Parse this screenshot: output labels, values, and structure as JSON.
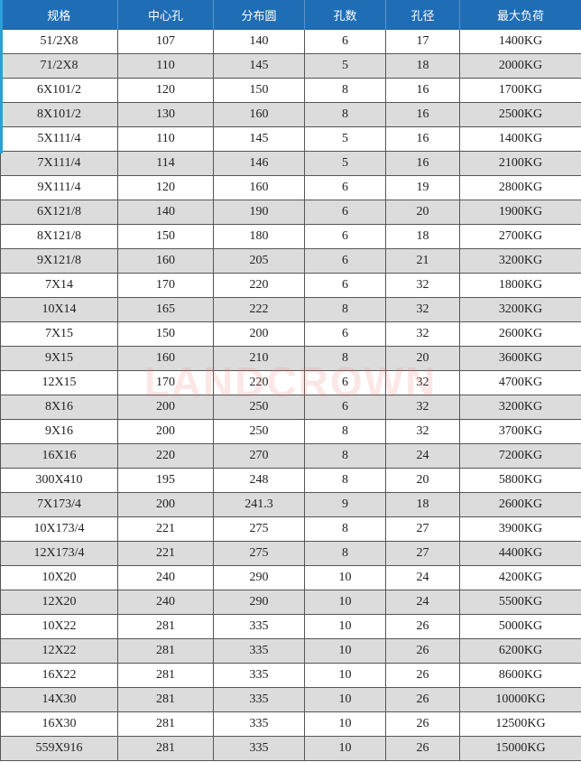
{
  "headers": [
    "规格",
    "中心孔",
    "分布圆",
    "孔数",
    "孔径",
    "最大负荷"
  ],
  "rows": [
    [
      "51/2X8",
      "107",
      "140",
      "6",
      "17",
      "1400KG"
    ],
    [
      "71/2X8",
      "110",
      "145",
      "5",
      "18",
      "2000KG"
    ],
    [
      "6X101/2",
      "120",
      "150",
      "8",
      "16",
      "1700KG"
    ],
    [
      "8X101/2",
      "130",
      "160",
      "8",
      "16",
      "2500KG"
    ],
    [
      "5X111/4",
      "110",
      "145",
      "5",
      "16",
      "1400KG"
    ],
    [
      "7X111/4",
      "114",
      "146",
      "5",
      "16",
      "2100KG"
    ],
    [
      "9X111/4",
      "120",
      "160",
      "6",
      "19",
      "2800KG"
    ],
    [
      "6X121/8",
      "140",
      "190",
      "6",
      "20",
      "1900KG"
    ],
    [
      "8X121/8",
      "150",
      "180",
      "6",
      "18",
      "2700KG"
    ],
    [
      "9X121/8",
      "160",
      "205",
      "6",
      "21",
      "3200KG"
    ],
    [
      "7X14",
      "170",
      "220",
      "6",
      "32",
      "1800KG"
    ],
    [
      "10X14",
      "165",
      "222",
      "8",
      "32",
      "3200KG"
    ],
    [
      "7X15",
      "150",
      "200",
      "6",
      "32",
      "2600KG"
    ],
    [
      "9X15",
      "160",
      "210",
      "8",
      "20",
      "3600KG"
    ],
    [
      "12X15",
      "170",
      "220",
      "6",
      "32",
      "4700KG"
    ],
    [
      "8X16",
      "200",
      "250",
      "6",
      "32",
      "3200KG"
    ],
    [
      "9X16",
      "200",
      "250",
      "8",
      "32",
      "3700KG"
    ],
    [
      "16X16",
      "220",
      "270",
      "8",
      "24",
      "7200KG"
    ],
    [
      "300X410",
      "195",
      "248",
      "8",
      "20",
      "5800KG"
    ],
    [
      "7X173/4",
      "200",
      "241.3",
      "9",
      "18",
      "2600KG"
    ],
    [
      "10X173/4",
      "221",
      "275",
      "8",
      "27",
      "3900KG"
    ],
    [
      "12X173/4",
      "221",
      "275",
      "8",
      "27",
      "4400KG"
    ],
    [
      "10X20",
      "240",
      "290",
      "10",
      "24",
      "4200KG"
    ],
    [
      "12X20",
      "240",
      "290",
      "10",
      "24",
      "5500KG"
    ],
    [
      "10X22",
      "281",
      "335",
      "10",
      "26",
      "5000KG"
    ],
    [
      "12X22",
      "281",
      "335",
      "10",
      "26",
      "6200KG"
    ],
    [
      "16X22",
      "281",
      "335",
      "10",
      "26",
      "8600KG"
    ],
    [
      "14X30",
      "281",
      "335",
      "10",
      "26",
      "10000KG"
    ],
    [
      "16X30",
      "281",
      "335",
      "10",
      "26",
      "12500KG"
    ],
    [
      "559X916",
      "281",
      "335",
      "10",
      "26",
      "15000KG"
    ]
  ],
  "watermark": "LANDCROWN",
  "colors": {
    "header_bg": "#1f6db5",
    "alt_row": "#dcdcdc",
    "watermark": "#f07878"
  }
}
